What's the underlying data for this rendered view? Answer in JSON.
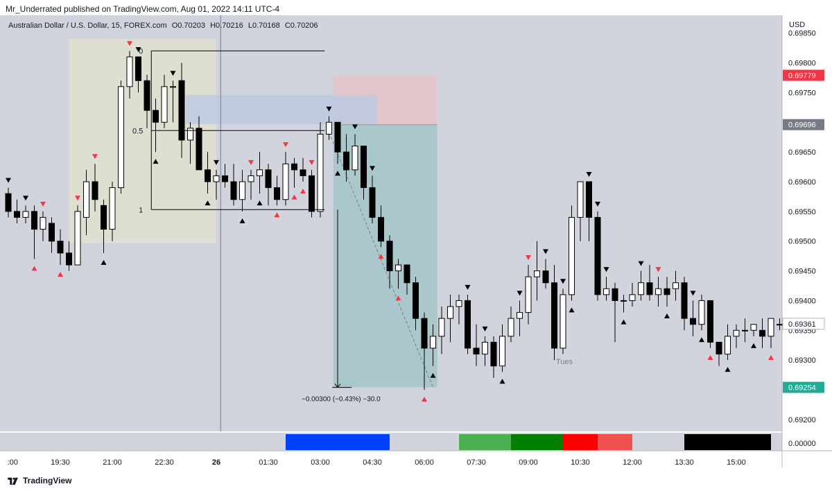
{
  "caption": "Mr_Underrated published on TradingView.com, Aug 01, 2022 14:11 UTC-4",
  "legend": {
    "symbol": "Australian Dollar / U.S. Dollar, 15, FOREX.com",
    "open": "O0.70203",
    "high": "H0.70216",
    "low": "L0.70168",
    "close": "C0.70206"
  },
  "footer": {
    "brand": "TradingView",
    "logo_icon": "tradingview-logo-icon"
  },
  "colors": {
    "background": "#d1d4dc",
    "bull_fill": "#ffffff",
    "bear_fill": "#000000",
    "red": "#f23645",
    "teal": "#22ab94",
    "gray_label": "#787b86"
  },
  "chart_data": {
    "type": "candlestick",
    "currency": "USD",
    "ylim": [
      0.6918,
      0.6988
    ],
    "y_ticks": [
      "0.69850",
      "0.69800",
      "0.69750",
      "0.69650",
      "0.69600",
      "0.69550",
      "0.69500",
      "0.69450",
      "0.69400",
      "0.69350",
      "0.69300",
      "0.69200"
    ],
    "x_ticks": [
      ":00",
      "19:30",
      "21:00",
      "22:30",
      "26",
      "01:30",
      "03:00",
      "04:30",
      "06:00",
      "07:30",
      "09:00",
      "10:30",
      "12:00",
      "13:30",
      "15:00"
    ],
    "x_tick_values": [
      0.5,
      6,
      12,
      18,
      24,
      30,
      36,
      42,
      48,
      54,
      60,
      66,
      72,
      78,
      84
    ],
    "price_badges": [
      {
        "value": "0.69779",
        "color": "#f23645"
      },
      {
        "value": "0.69696",
        "color": "#787b86"
      },
      {
        "value": "0.69361",
        "color": "#ffffff"
      },
      {
        "value": "0.69254",
        "color": "#22ab94"
      }
    ],
    "candles": [
      [
        0,
        0.6958,
        0.6959,
        0.6954,
        0.6955
      ],
      [
        1,
        0.6955,
        0.6957,
        0.6953,
        0.6954
      ],
      [
        2,
        0.6954,
        0.6956,
        0.6953,
        0.6955
      ],
      [
        3,
        0.6955,
        0.6956,
        0.6947,
        0.6952
      ],
      [
        4,
        0.6952,
        0.6955,
        0.695,
        0.6954
      ],
      [
        5,
        0.6953,
        0.6954,
        0.6948,
        0.695
      ],
      [
        6,
        0.695,
        0.6952,
        0.6946,
        0.6948
      ],
      [
        7,
        0.6948,
        0.695,
        0.6945,
        0.6946
      ],
      [
        8,
        0.6946,
        0.6956,
        0.6946,
        0.6955
      ],
      [
        9,
        0.6954,
        0.6962,
        0.6951,
        0.696
      ],
      [
        10,
        0.696,
        0.6963,
        0.6955,
        0.6957
      ],
      [
        11,
        0.6956,
        0.6957,
        0.6948,
        0.6952
      ],
      [
        12,
        0.6952,
        0.696,
        0.695,
        0.6959
      ],
      [
        13,
        0.6959,
        0.6977,
        0.6958,
        0.6976
      ],
      [
        14,
        0.6976,
        0.6982,
        0.6974,
        0.6981
      ],
      [
        15,
        0.6981,
        0.6981,
        0.6975,
        0.6977
      ],
      [
        16,
        0.6977,
        0.6978,
        0.6969,
        0.6972
      ],
      [
        17,
        0.6972,
        0.6974,
        0.6965,
        0.697
      ],
      [
        18,
        0.697,
        0.6978,
        0.6969,
        0.6976
      ],
      [
        19,
        0.6976,
        0.6977,
        0.697,
        0.6976
      ],
      [
        20,
        0.6977,
        0.698,
        0.6964,
        0.6967
      ],
      [
        21,
        0.6967,
        0.697,
        0.6963,
        0.6969
      ],
      [
        22,
        0.6969,
        0.6971,
        0.6962,
        0.6962
      ],
      [
        23,
        0.6962,
        0.6965,
        0.6958,
        0.696
      ],
      [
        24,
        0.696,
        0.6962,
        0.6957,
        0.6961
      ],
      [
        25,
        0.6961,
        0.6963,
        0.6959,
        0.696
      ],
      [
        26,
        0.696,
        0.6963,
        0.6956,
        0.6957
      ],
      [
        27,
        0.6957,
        0.6962,
        0.6955,
        0.696
      ],
      [
        28,
        0.696,
        0.6962,
        0.6957,
        0.6961
      ],
      [
        29,
        0.6961,
        0.6965,
        0.6958,
        0.6962
      ],
      [
        30,
        0.6962,
        0.6963,
        0.6956,
        0.6959
      ],
      [
        31,
        0.6959,
        0.6961,
        0.6956,
        0.6957
      ],
      [
        32,
        0.6957,
        0.6965,
        0.6956,
        0.6963
      ],
      [
        33,
        0.6963,
        0.6964,
        0.6959,
        0.6962
      ],
      [
        34,
        0.6962,
        0.6964,
        0.696,
        0.6961
      ],
      [
        35,
        0.6961,
        0.6962,
        0.6954,
        0.6955
      ],
      [
        36,
        0.6955,
        0.697,
        0.6954,
        0.6968
      ],
      [
        37,
        0.6968,
        0.6971,
        0.6967,
        0.697
      ],
      [
        38,
        0.697,
        0.697,
        0.6963,
        0.6965
      ],
      [
        39,
        0.6965,
        0.6968,
        0.696,
        0.6962
      ],
      [
        40,
        0.6962,
        0.6968,
        0.6961,
        0.6966
      ],
      [
        41,
        0.6966,
        0.6966,
        0.6957,
        0.6959
      ],
      [
        42,
        0.6959,
        0.6961,
        0.6953,
        0.6954
      ],
      [
        43,
        0.6954,
        0.6956,
        0.6949,
        0.695
      ],
      [
        44,
        0.695,
        0.6951,
        0.6942,
        0.6945
      ],
      [
        45,
        0.6945,
        0.6947,
        0.6942,
        0.6946
      ],
      [
        46,
        0.6946,
        0.6946,
        0.6941,
        0.6943
      ],
      [
        47,
        0.6943,
        0.6944,
        0.6935,
        0.6937
      ],
      [
        48,
        0.6937,
        0.6938,
        0.6925,
        0.6932
      ],
      [
        49,
        0.6932,
        0.6936,
        0.6929,
        0.6934
      ],
      [
        50,
        0.6934,
        0.6939,
        0.6931,
        0.6937
      ],
      [
        51,
        0.6937,
        0.6941,
        0.6933,
        0.6939
      ],
      [
        52,
        0.6939,
        0.6941,
        0.6936,
        0.694
      ],
      [
        53,
        0.694,
        0.6941,
        0.6931,
        0.6932
      ],
      [
        54,
        0.6932,
        0.6936,
        0.6929,
        0.6931
      ],
      [
        55,
        0.6931,
        0.6934,
        0.6929,
        0.6933
      ],
      [
        56,
        0.6933,
        0.6934,
        0.6927,
        0.6929
      ],
      [
        57,
        0.6929,
        0.6936,
        0.6928,
        0.6934
      ],
      [
        58,
        0.6934,
        0.6939,
        0.6933,
        0.6937
      ],
      [
        59,
        0.6937,
        0.694,
        0.6934,
        0.6938
      ],
      [
        60,
        0.6938,
        0.6946,
        0.6936,
        0.6944
      ],
      [
        61,
        0.6944,
        0.695,
        0.694,
        0.6945
      ],
      [
        62,
        0.6945,
        0.6947,
        0.6942,
        0.6943
      ],
      [
        63,
        0.6943,
        0.6946,
        0.693,
        0.6932
      ],
      [
        64,
        0.6932,
        0.6942,
        0.6931,
        0.6941
      ],
      [
        65,
        0.6941,
        0.6956,
        0.694,
        0.6954
      ],
      [
        66,
        0.6954,
        0.696,
        0.695,
        0.696
      ],
      [
        67,
        0.696,
        0.696,
        0.695,
        0.6954
      ],
      [
        68,
        0.6954,
        0.6955,
        0.694,
        0.6941
      ],
      [
        69,
        0.6941,
        0.6944,
        0.694,
        0.6942
      ],
      [
        70,
        0.6942,
        0.6943,
        0.6933,
        0.694
      ],
      [
        71,
        0.694,
        0.6941,
        0.6938,
        0.694
      ],
      [
        72,
        0.694,
        0.6943,
        0.6939,
        0.6941
      ],
      [
        73,
        0.6941,
        0.6945,
        0.694,
        0.6943
      ],
      [
        74,
        0.6943,
        0.6946,
        0.694,
        0.6941
      ],
      [
        75,
        0.6941,
        0.6944,
        0.6939,
        0.6942
      ],
      [
        76,
        0.6942,
        0.6944,
        0.6939,
        0.6941
      ],
      [
        77,
        0.6942,
        0.6945,
        0.694,
        0.6943
      ],
      [
        78,
        0.6943,
        0.6944,
        0.6935,
        0.6937
      ],
      [
        79,
        0.6937,
        0.694,
        0.6934,
        0.6936
      ],
      [
        80,
        0.6936,
        0.6941,
        0.6935,
        0.694
      ],
      [
        81,
        0.694,
        0.694,
        0.6932,
        0.6933
      ],
      [
        82,
        0.6933,
        0.6933,
        0.6929,
        0.6931
      ],
      [
        83,
        0.6931,
        0.6936,
        0.693,
        0.6934
      ],
      [
        84,
        0.6934,
        0.6936,
        0.6932,
        0.6935
      ],
      [
        85,
        0.6935,
        0.6937,
        0.6933,
        0.6935
      ],
      [
        86,
        0.6935,
        0.6936,
        0.6934,
        0.6936
      ],
      [
        87,
        0.6935,
        0.6937,
        0.6932,
        0.6934
      ],
      [
        88,
        0.6934,
        0.6937,
        0.6932,
        0.6937
      ],
      [
        89,
        0.6936,
        0.6937,
        0.6935,
        0.6936
      ]
    ],
    "markers": [
      {
        "i": 0,
        "pos": "above",
        "dir": "down",
        "color": "black"
      },
      {
        "i": 2,
        "pos": "above",
        "dir": "down",
        "color": "black"
      },
      {
        "i": 3,
        "pos": "below",
        "dir": "up",
        "color": "red"
      },
      {
        "i": 4,
        "pos": "above",
        "dir": "down",
        "color": "red"
      },
      {
        "i": 6,
        "pos": "below",
        "dir": "up",
        "color": "red"
      },
      {
        "i": 8,
        "pos": "above",
        "dir": "down",
        "color": "red"
      },
      {
        "i": 10,
        "pos": "above",
        "dir": "down",
        "color": "red"
      },
      {
        "i": 11,
        "pos": "below",
        "dir": "up",
        "color": "black"
      },
      {
        "i": 14,
        "pos": "above",
        "dir": "down",
        "color": "red"
      },
      {
        "i": 15,
        "pos": "above",
        "dir": "down",
        "color": "black"
      },
      {
        "i": 17,
        "pos": "below",
        "dir": "up",
        "color": "black"
      },
      {
        "i": 19,
        "pos": "above",
        "dir": "down",
        "color": "black"
      },
      {
        "i": 23,
        "pos": "below",
        "dir": "up",
        "color": "black"
      },
      {
        "i": 24,
        "pos": "above",
        "dir": "down",
        "color": "black"
      },
      {
        "i": 27,
        "pos": "below",
        "dir": "up",
        "color": "black"
      },
      {
        "i": 28,
        "pos": "above",
        "dir": "down",
        "color": "red"
      },
      {
        "i": 29,
        "pos": "below",
        "dir": "up",
        "color": "black"
      },
      {
        "i": 31,
        "pos": "below",
        "dir": "up",
        "color": "red"
      },
      {
        "i": 32,
        "pos": "above",
        "dir": "down",
        "color": "red"
      },
      {
        "i": 33,
        "pos": "below",
        "dir": "up",
        "color": "red"
      },
      {
        "i": 34,
        "pos": "below",
        "dir": "up",
        "color": "red"
      },
      {
        "i": 35,
        "pos": "above",
        "dir": "down",
        "color": "red"
      },
      {
        "i": 37,
        "pos": "above",
        "dir": "down",
        "color": "black"
      },
      {
        "i": 38,
        "pos": "below",
        "dir": "up",
        "color": "black"
      },
      {
        "i": 40,
        "pos": "above",
        "dir": "down",
        "color": "black"
      },
      {
        "i": 42,
        "pos": "above",
        "dir": "down",
        "color": "black"
      },
      {
        "i": 43,
        "pos": "below",
        "dir": "up",
        "color": "red"
      },
      {
        "i": 45,
        "pos": "below",
        "dir": "up",
        "color": "red"
      },
      {
        "i": 48,
        "pos": "below",
        "dir": "up",
        "color": "red"
      },
      {
        "i": 49,
        "pos": "below",
        "dir": "up",
        "color": "black"
      },
      {
        "i": 53,
        "pos": "above",
        "dir": "down",
        "color": "black"
      },
      {
        "i": 55,
        "pos": "above",
        "dir": "down",
        "color": "black"
      },
      {
        "i": 57,
        "pos": "below",
        "dir": "up",
        "color": "black"
      },
      {
        "i": 59,
        "pos": "above",
        "dir": "down",
        "color": "black"
      },
      {
        "i": 60,
        "pos": "above",
        "dir": "down",
        "color": "red"
      },
      {
        "i": 62,
        "pos": "above",
        "dir": "down",
        "color": "black"
      },
      {
        "i": 64,
        "pos": "above",
        "dir": "down",
        "color": "black"
      },
      {
        "i": 65,
        "pos": "below",
        "dir": "up",
        "color": "black"
      },
      {
        "i": 67,
        "pos": "above",
        "dir": "down",
        "color": "black"
      },
      {
        "i": 68,
        "pos": "above",
        "dir": "down",
        "color": "black"
      },
      {
        "i": 69,
        "pos": "above",
        "dir": "down",
        "color": "black"
      },
      {
        "i": 71,
        "pos": "below",
        "dir": "up",
        "color": "black"
      },
      {
        "i": 73,
        "pos": "above",
        "dir": "down",
        "color": "black"
      },
      {
        "i": 75,
        "pos": "above",
        "dir": "down",
        "color": "red"
      },
      {
        "i": 76,
        "pos": "below",
        "dir": "up",
        "color": "black"
      },
      {
        "i": 79,
        "pos": "above",
        "dir": "down",
        "color": "black"
      },
      {
        "i": 80,
        "pos": "below",
        "dir": "up",
        "color": "black"
      },
      {
        "i": 81,
        "pos": "below",
        "dir": "up",
        "color": "red"
      },
      {
        "i": 83,
        "pos": "below",
        "dir": "up",
        "color": "black"
      },
      {
        "i": 86,
        "pos": "below",
        "dir": "up",
        "color": "black"
      },
      {
        "i": 88,
        "pos": "below",
        "dir": "up",
        "color": "red"
      }
    ],
    "fib": {
      "x_start": 16.5,
      "x_end": 36.5,
      "levels": [
        {
          "label": "0",
          "value": 0.6982
        },
        {
          "label": "0.5",
          "value": 0.69686
        },
        {
          "label": "1",
          "value": 0.69553
        }
      ],
      "box_x": [
        7,
        24
      ],
      "box_y": [
        0.69497,
        0.6984
      ]
    },
    "position": {
      "x": [
        37.5,
        49.5
      ],
      "entry": 0.69696,
      "stop": 0.69779,
      "target": 0.69254,
      "label": "−0.00300 (−0.43%) −30.0"
    },
    "blue_rect": {
      "x": [
        20.5,
        42.5
      ],
      "y": [
        0.69697,
        0.69746
      ]
    },
    "annotations": [
      {
        "text": "Tues",
        "i": 64,
        "value": 0.69298
      }
    ],
    "measure_line": {
      "x": 38,
      "y1": 0.69553,
      "y2": 0.69254
    },
    "vline_x": 24.5,
    "session_bars": [
      {
        "x": [
          32,
          44
        ],
        "color": "#0040ff"
      },
      {
        "x": [
          52,
          58
        ],
        "color": "#4caf50"
      },
      {
        "x": [
          58,
          64
        ],
        "color": "#008000"
      },
      {
        "x": [
          64,
          68
        ],
        "color": "#ff0000"
      },
      {
        "x": [
          68,
          72
        ],
        "color": "#ef5350"
      },
      {
        "x": [
          78,
          88
        ],
        "color": "#000000"
      }
    ],
    "indicator_value": "0.00000"
  }
}
